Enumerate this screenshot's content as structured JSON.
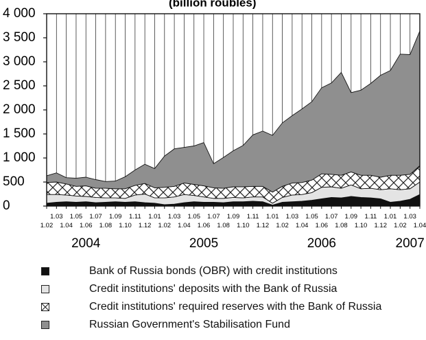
{
  "chart_data": {
    "type": "area",
    "title": "(billion roubles)",
    "ylim": [
      0,
      4000
    ],
    "yticks": [
      0,
      500,
      1000,
      1500,
      2000,
      2500,
      3000,
      3500,
      4000
    ],
    "ytick_labels": [
      "0",
      "500",
      "1 000",
      "1 500",
      "2 000",
      "2 500",
      "3 000",
      "3 500",
      "4 000"
    ],
    "x": [
      "1.02",
      "1.03",
      "1.04",
      "1.05",
      "1.06",
      "1.07",
      "1.08",
      "1.09",
      "1.10",
      "1.11",
      "1.12",
      "1.01",
      "1.02",
      "1.03",
      "1.04",
      "1.05",
      "1.06",
      "1.07",
      "1.08",
      "1.09",
      "1.10",
      "1.11",
      "1.12",
      "1.01",
      "1.02",
      "1.03",
      "1.04",
      "1.05",
      "1.06",
      "1.07",
      "1.08",
      "1.09",
      "1.10",
      "1.11",
      "1.12",
      "1.01",
      "1.02",
      "1.03",
      "1.04"
    ],
    "year_labels": [
      {
        "label": "2004",
        "index": 4
      },
      {
        "label": "2005",
        "index": 16
      },
      {
        "label": "2006",
        "index": 28
      },
      {
        "label": "2007",
        "index": 37
      }
    ],
    "series": [
      {
        "name": "Bank of Russia bonds (OBR) with credit institutions",
        "color": "#111111",
        "values": [
          60,
          80,
          90,
          80,
          90,
          70,
          80,
          90,
          80,
          90,
          70,
          60,
          30,
          40,
          70,
          90,
          80,
          80,
          70,
          90,
          90,
          100,
          90,
          20,
          80,
          90,
          100,
          120,
          150,
          180,
          170,
          200,
          180,
          170,
          150,
          80,
          100,
          140,
          240
        ]
      },
      {
        "name": "Credit institutions' deposits with the Bank of Russia",
        "color": "#e4e4e4",
        "values": [
          180,
          160,
          140,
          130,
          110,
          110,
          90,
          80,
          80,
          140,
          180,
          110,
          140,
          150,
          170,
          130,
          110,
          80,
          90,
          90,
          80,
          90,
          100,
          40,
          100,
          140,
          140,
          160,
          240,
          220,
          200,
          240,
          180,
          200,
          190,
          280,
          240,
          220,
          260
        ]
      },
      {
        "name": "Credit institutions' required reserves with the Bank of Russia",
        "color": "#ffffff",
        "values": [
          250,
          260,
          230,
          200,
          220,
          190,
          200,
          190,
          200,
          200,
          220,
          210,
          220,
          220,
          240,
          230,
          230,
          220,
          210,
          220,
          230,
          220,
          220,
          230,
          230,
          250,
          250,
          260,
          280,
          260,
          270,
          270,
          280,
          270,
          260,
          280,
          300,
          300,
          340
        ]
      },
      {
        "name": "Russian Government's Stabilisation Fund",
        "color": "#8f8f8f",
        "values": [
          140,
          190,
          130,
          170,
          180,
          180,
          140,
          160,
          250,
          320,
          400,
          400,
          650,
          780,
          740,
          800,
          900,
          500,
          640,
          750,
          860,
          1070,
          1150,
          1180,
          1320,
          1400,
          1530,
          1630,
          1790,
          1900,
          2140,
          1650,
          1770,
          1910,
          2120,
          2180,
          2520,
          2490,
          2800
        ]
      }
    ],
    "grid": true,
    "legend_position": "bottom"
  }
}
